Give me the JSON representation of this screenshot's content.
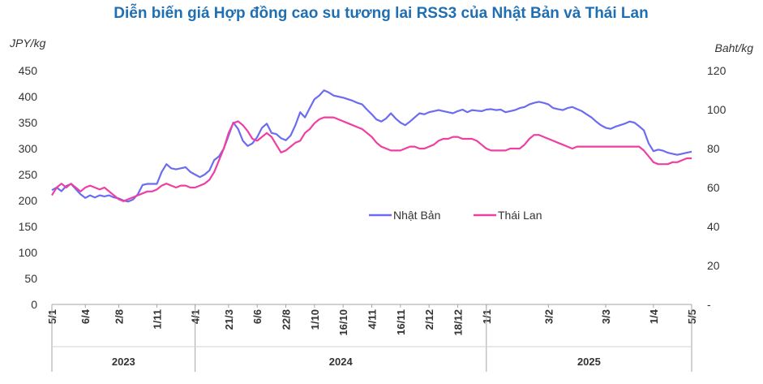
{
  "chart_data": {
    "type": "line",
    "title": "Diễn biến giá Hợp đồng cao su tương lai RSS3 của Nhật Bản và Thái Lan",
    "ylabel_left": "JPY/kg",
    "ylabel_right": "Baht/kg",
    "ylim_left": [
      0,
      450
    ],
    "ylim_right": [
      0,
      120
    ],
    "yticks_left": [
      "0",
      "50",
      "100",
      "150",
      "200",
      "250",
      "300",
      "350",
      "400",
      "450"
    ],
    "yticks_right": [
      "-",
      "20",
      "40",
      "60",
      "80",
      "100",
      "120"
    ],
    "grid": false,
    "legend_position": "center-right",
    "x_tick_labels": [
      "5/1",
      "6/4",
      "2/8",
      "1/11",
      "4/1",
      "21/3",
      "6/6",
      "22/8",
      "1/10",
      "16/10",
      "4/11",
      "16/11",
      "2/12",
      "18/12",
      "1/1",
      "3/2",
      "3/3",
      "1/4",
      "5/5"
    ],
    "year_labels": [
      "2023",
      "2024",
      "2025"
    ],
    "series": [
      {
        "name": "Nhật Bản",
        "axis": "left",
        "color": "#6b6cf0",
        "points": [
          [
            0,
            220
          ],
          [
            2,
            225
          ],
          [
            4,
            218
          ],
          [
            6,
            228
          ],
          [
            8,
            232
          ],
          [
            10,
            222
          ],
          [
            12,
            212
          ],
          [
            14,
            205
          ],
          [
            16,
            210
          ],
          [
            18,
            206
          ],
          [
            20,
            210
          ],
          [
            22,
            208
          ],
          [
            24,
            210
          ],
          [
            26,
            206
          ],
          [
            28,
            204
          ],
          [
            30,
            200
          ],
          [
            32,
            198
          ],
          [
            34,
            202
          ],
          [
            36,
            212
          ],
          [
            38,
            230
          ],
          [
            40,
            232
          ],
          [
            42,
            232
          ],
          [
            44,
            232
          ],
          [
            46,
            255
          ],
          [
            48,
            270
          ],
          [
            50,
            262
          ],
          [
            52,
            260
          ],
          [
            54,
            262
          ],
          [
            56,
            264
          ],
          [
            58,
            255
          ],
          [
            60,
            250
          ],
          [
            62,
            245
          ],
          [
            64,
            250
          ],
          [
            66,
            258
          ],
          [
            68,
            278
          ],
          [
            70,
            285
          ],
          [
            72,
            300
          ],
          [
            74,
            325
          ],
          [
            76,
            350
          ],
          [
            78,
            338
          ],
          [
            80,
            315
          ],
          [
            82,
            305
          ],
          [
            84,
            310
          ],
          [
            86,
            322
          ],
          [
            88,
            340
          ],
          [
            90,
            348
          ],
          [
            92,
            330
          ],
          [
            94,
            328
          ],
          [
            96,
            320
          ],
          [
            98,
            316
          ],
          [
            100,
            325
          ],
          [
            102,
            345
          ],
          [
            104,
            370
          ],
          [
            106,
            360
          ],
          [
            108,
            378
          ],
          [
            110,
            395
          ],
          [
            112,
            402
          ],
          [
            114,
            412
          ],
          [
            116,
            408
          ],
          [
            118,
            402
          ],
          [
            120,
            400
          ],
          [
            122,
            398
          ],
          [
            124,
            395
          ],
          [
            126,
            392
          ],
          [
            128,
            388
          ],
          [
            130,
            385
          ],
          [
            132,
            375
          ],
          [
            134,
            366
          ],
          [
            136,
            356
          ],
          [
            138,
            352
          ],
          [
            140,
            358
          ],
          [
            142,
            368
          ],
          [
            144,
            358
          ],
          [
            146,
            350
          ],
          [
            148,
            345
          ],
          [
            150,
            352
          ],
          [
            152,
            360
          ],
          [
            154,
            368
          ],
          [
            156,
            366
          ],
          [
            158,
            370
          ],
          [
            160,
            372
          ],
          [
            162,
            374
          ],
          [
            164,
            372
          ],
          [
            166,
            370
          ],
          [
            168,
            368
          ],
          [
            170,
            372
          ],
          [
            172,
            375
          ],
          [
            174,
            370
          ],
          [
            176,
            374
          ],
          [
            178,
            373
          ],
          [
            180,
            372
          ],
          [
            182,
            375
          ],
          [
            184,
            376
          ],
          [
            186,
            374
          ],
          [
            188,
            375
          ],
          [
            190,
            370
          ],
          [
            192,
            372
          ],
          [
            194,
            374
          ],
          [
            196,
            378
          ],
          [
            198,
            380
          ],
          [
            200,
            385
          ],
          [
            202,
            388
          ],
          [
            204,
            390
          ],
          [
            206,
            388
          ],
          [
            208,
            385
          ],
          [
            210,
            378
          ],
          [
            212,
            376
          ],
          [
            214,
            374
          ],
          [
            216,
            378
          ],
          [
            218,
            380
          ],
          [
            220,
            376
          ],
          [
            222,
            372
          ],
          [
            224,
            366
          ],
          [
            226,
            360
          ],
          [
            228,
            352
          ],
          [
            230,
            345
          ],
          [
            232,
            340
          ],
          [
            234,
            338
          ],
          [
            236,
            342
          ],
          [
            238,
            345
          ],
          [
            240,
            348
          ],
          [
            242,
            352
          ],
          [
            244,
            350
          ],
          [
            246,
            343
          ],
          [
            248,
            335
          ],
          [
            250,
            310
          ],
          [
            252,
            295
          ],
          [
            254,
            298
          ],
          [
            256,
            296
          ],
          [
            258,
            292
          ],
          [
            260,
            290
          ],
          [
            262,
            288
          ],
          [
            264,
            290
          ],
          [
            266,
            292
          ],
          [
            268,
            294
          ]
        ]
      },
      {
        "name": "Thái Lan",
        "axis": "right",
        "color": "#ee3fa3",
        "points": [
          [
            0,
            56
          ],
          [
            2,
            60
          ],
          [
            4,
            62
          ],
          [
            6,
            60
          ],
          [
            8,
            62
          ],
          [
            10,
            60
          ],
          [
            12,
            58
          ],
          [
            14,
            60
          ],
          [
            16,
            61
          ],
          [
            18,
            60
          ],
          [
            20,
            59
          ],
          [
            22,
            60
          ],
          [
            24,
            58
          ],
          [
            26,
            56
          ],
          [
            28,
            54
          ],
          [
            30,
            53
          ],
          [
            32,
            54
          ],
          [
            34,
            55
          ],
          [
            36,
            56
          ],
          [
            38,
            57
          ],
          [
            40,
            58
          ],
          [
            42,
            58
          ],
          [
            44,
            59
          ],
          [
            46,
            61
          ],
          [
            48,
            62
          ],
          [
            50,
            61
          ],
          [
            52,
            60
          ],
          [
            54,
            61
          ],
          [
            56,
            61
          ],
          [
            58,
            60
          ],
          [
            60,
            60
          ],
          [
            62,
            61
          ],
          [
            64,
            62
          ],
          [
            66,
            64
          ],
          [
            68,
            68
          ],
          [
            70,
            74
          ],
          [
            72,
            80
          ],
          [
            74,
            88
          ],
          [
            76,
            93
          ],
          [
            78,
            94
          ],
          [
            80,
            92
          ],
          [
            82,
            89
          ],
          [
            84,
            85
          ],
          [
            86,
            84
          ],
          [
            88,
            86
          ],
          [
            90,
            88
          ],
          [
            92,
            86
          ],
          [
            94,
            82
          ],
          [
            96,
            78
          ],
          [
            98,
            79
          ],
          [
            100,
            81
          ],
          [
            102,
            83
          ],
          [
            104,
            84
          ],
          [
            106,
            88
          ],
          [
            108,
            90
          ],
          [
            110,
            93
          ],
          [
            112,
            95
          ],
          [
            114,
            96
          ],
          [
            116,
            96
          ],
          [
            118,
            96
          ],
          [
            120,
            95
          ],
          [
            122,
            94
          ],
          [
            124,
            93
          ],
          [
            126,
            92
          ],
          [
            128,
            91
          ],
          [
            130,
            90
          ],
          [
            132,
            88
          ],
          [
            134,
            86
          ],
          [
            136,
            83
          ],
          [
            138,
            81
          ],
          [
            140,
            80
          ],
          [
            142,
            79
          ],
          [
            144,
            79
          ],
          [
            146,
            79
          ],
          [
            148,
            80
          ],
          [
            150,
            81
          ],
          [
            152,
            81
          ],
          [
            154,
            80
          ],
          [
            156,
            80
          ],
          [
            158,
            81
          ],
          [
            160,
            82
          ],
          [
            162,
            84
          ],
          [
            164,
            85
          ],
          [
            166,
            85
          ],
          [
            168,
            86
          ],
          [
            170,
            86
          ],
          [
            172,
            85
          ],
          [
            174,
            85
          ],
          [
            176,
            85
          ],
          [
            178,
            84
          ],
          [
            180,
            82
          ],
          [
            182,
            80
          ],
          [
            184,
            79
          ],
          [
            186,
            79
          ],
          [
            188,
            79
          ],
          [
            190,
            79
          ],
          [
            192,
            80
          ],
          [
            194,
            80
          ],
          [
            196,
            80
          ],
          [
            198,
            82
          ],
          [
            200,
            85
          ],
          [
            202,
            87
          ],
          [
            204,
            87
          ],
          [
            206,
            86
          ],
          [
            208,
            85
          ],
          [
            210,
            84
          ],
          [
            212,
            83
          ],
          [
            214,
            82
          ],
          [
            216,
            81
          ],
          [
            218,
            80
          ],
          [
            220,
            81
          ],
          [
            222,
            81
          ],
          [
            224,
            81
          ],
          [
            226,
            81
          ],
          [
            228,
            81
          ],
          [
            230,
            81
          ],
          [
            232,
            81
          ],
          [
            234,
            81
          ],
          [
            236,
            81
          ],
          [
            238,
            81
          ],
          [
            240,
            81
          ],
          [
            242,
            81
          ],
          [
            244,
            81
          ],
          [
            246,
            81
          ],
          [
            248,
            79
          ],
          [
            250,
            76
          ],
          [
            252,
            73
          ],
          [
            254,
            72
          ],
          [
            256,
            72
          ],
          [
            258,
            72
          ],
          [
            260,
            73
          ],
          [
            262,
            73
          ],
          [
            264,
            74
          ],
          [
            266,
            75
          ],
          [
            268,
            75
          ]
        ]
      }
    ]
  }
}
